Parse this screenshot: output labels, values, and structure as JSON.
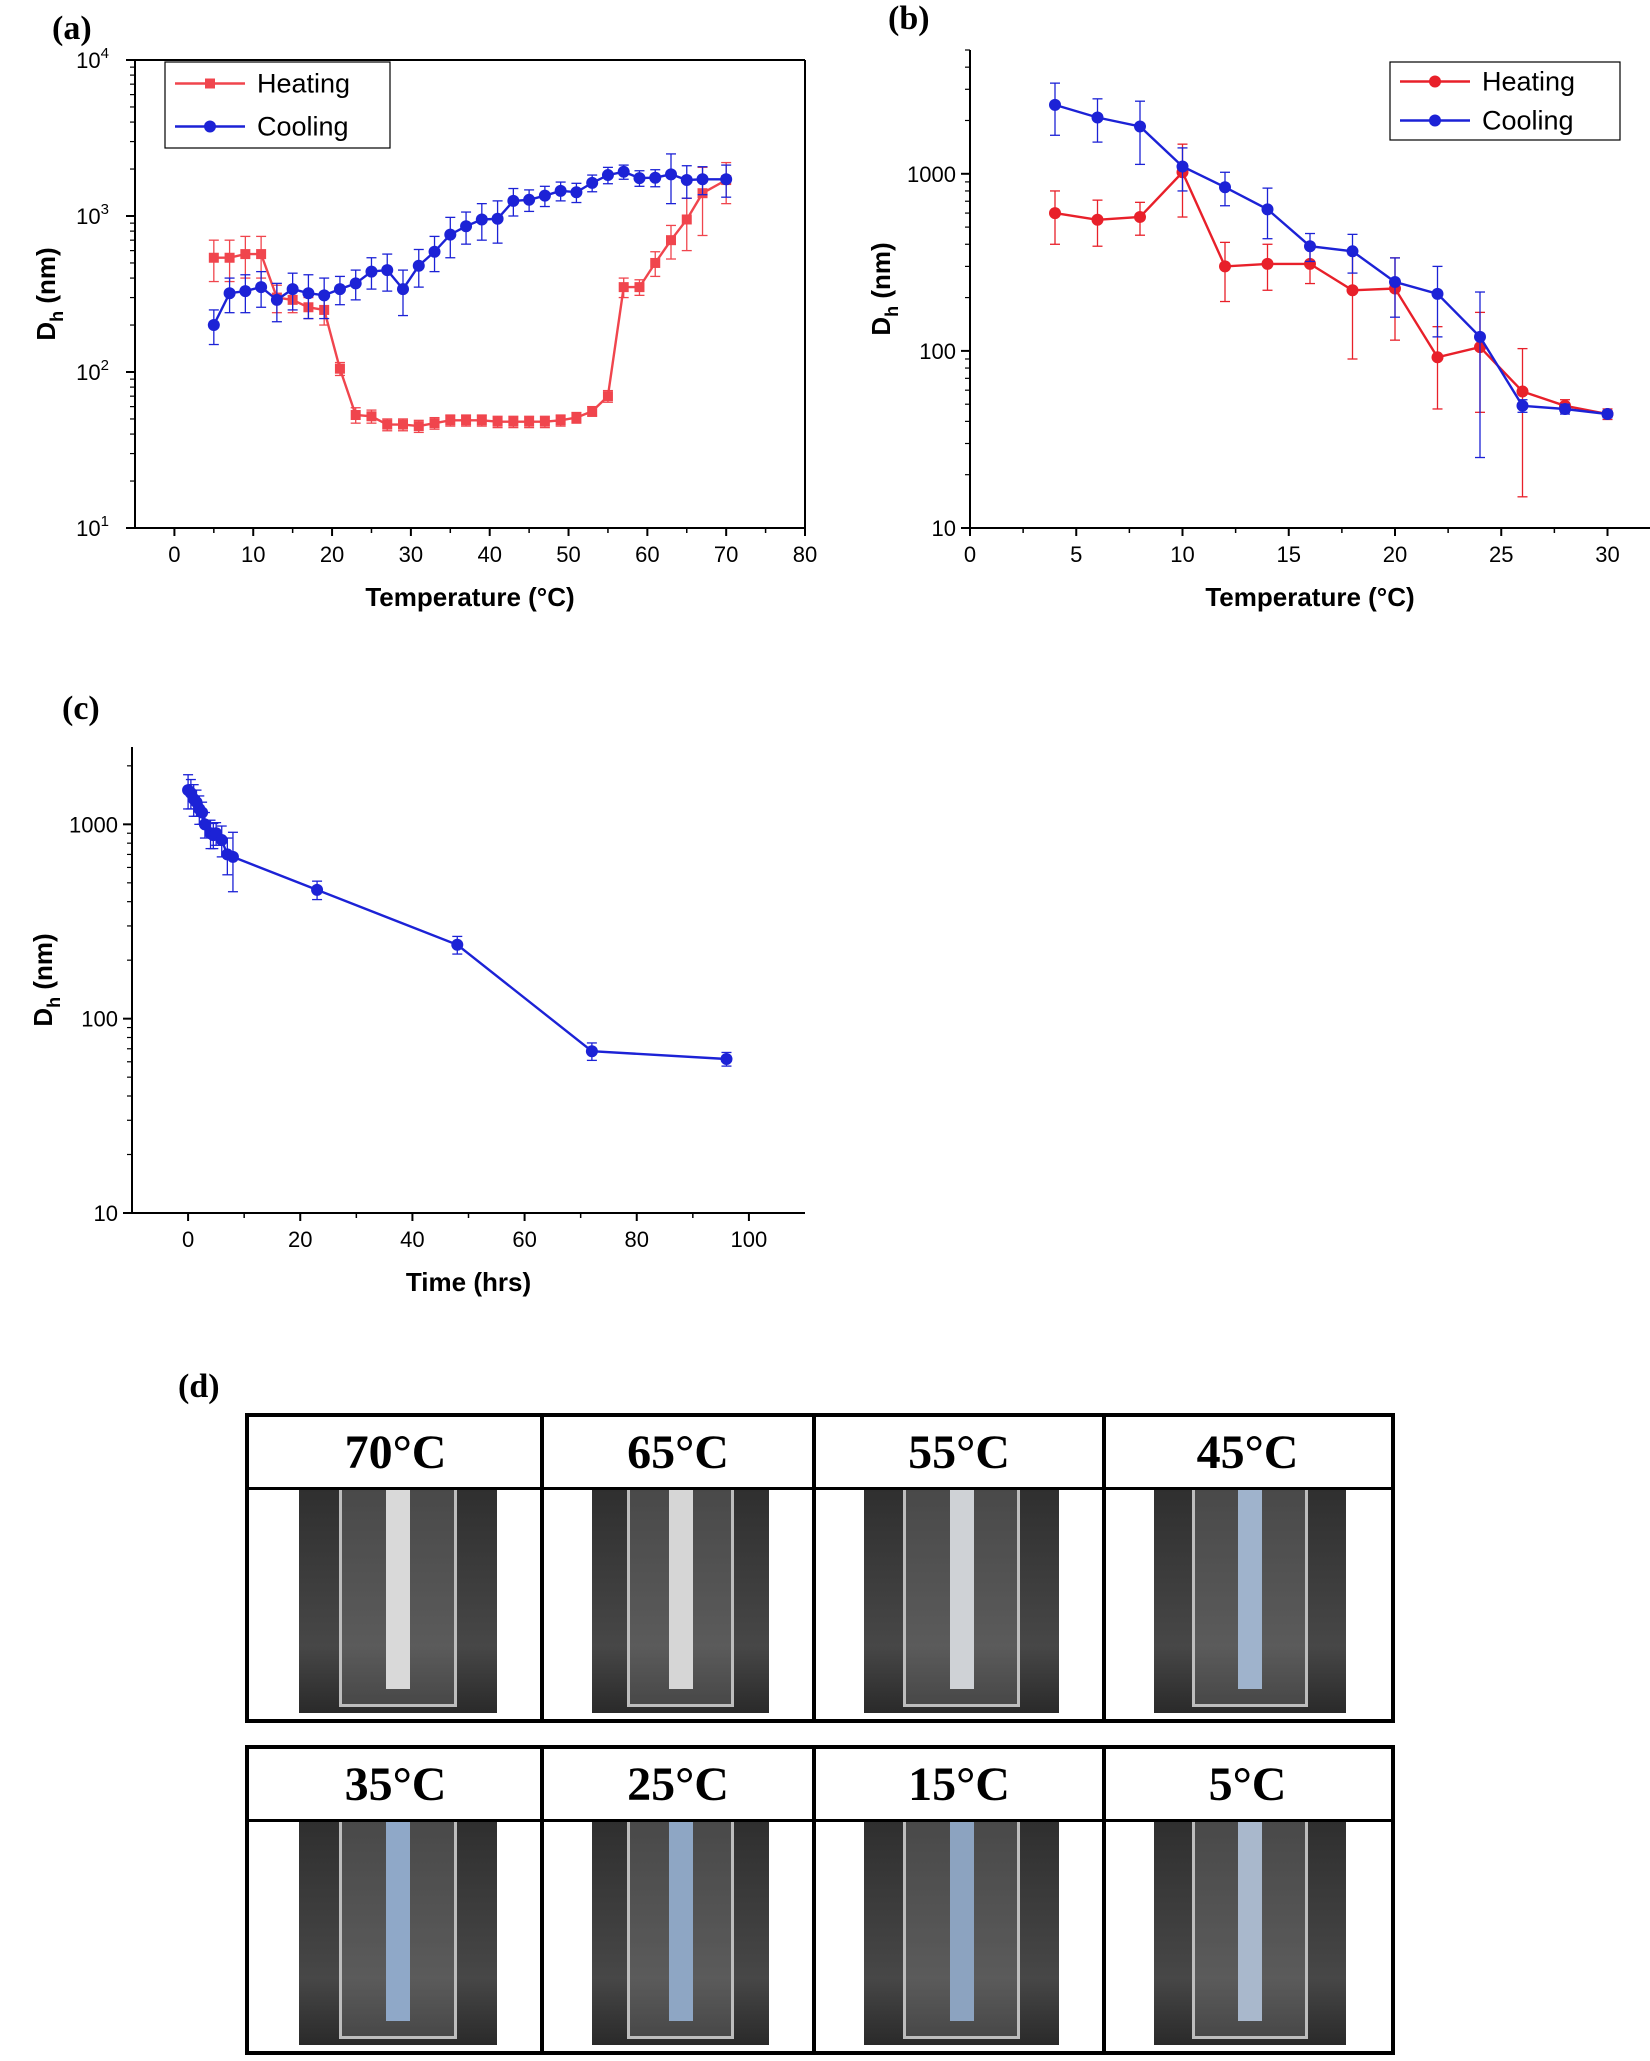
{
  "panels": {
    "a": {
      "label": "(a)"
    },
    "b": {
      "label": "(b)"
    },
    "c": {
      "label": "(c)"
    },
    "d": {
      "label": "(d)"
    }
  },
  "chart_data": [
    {
      "id": "a",
      "type": "line",
      "xlabel": "Temperature (°C)",
      "ylabel": "D_h (nm)",
      "ylabel_main": "D",
      "ylabel_sub": "h",
      "ylabel_rest": " (nm)",
      "xlim": [
        -5,
        80
      ],
      "ylim": [
        10,
        10000
      ],
      "yscale": "log",
      "xticks": [
        0,
        10,
        20,
        30,
        40,
        50,
        60,
        70,
        80
      ],
      "yticks": [
        {
          "v": 10,
          "base": "10",
          "exp": "1"
        },
        {
          "v": 100,
          "base": "10",
          "exp": "2"
        },
        {
          "v": 1000,
          "base": "10",
          "exp": "3"
        },
        {
          "v": 10000,
          "base": "10",
          "exp": "4"
        }
      ],
      "legend": "top-left",
      "series": [
        {
          "name": "Heating",
          "color": "#f0454d",
          "marker": "square",
          "x": [
            5,
            7,
            9,
            11,
            13,
            15,
            17,
            19,
            21,
            23,
            25,
            27,
            29,
            31,
            33,
            35,
            37,
            39,
            41,
            43,
            45,
            47,
            49,
            51,
            53,
            55,
            57,
            59,
            61,
            63,
            65,
            67,
            70
          ],
          "y": [
            540,
            540,
            570,
            570,
            300,
            290,
            260,
            250,
            105,
            53,
            52,
            46,
            46,
            45,
            47,
            49,
            49,
            49,
            48,
            48,
            48,
            48,
            49,
            51,
            56,
            70,
            350,
            350,
            500,
            700,
            950,
            1400,
            1700
          ],
          "err": [
            160,
            160,
            170,
            170,
            60,
            50,
            40,
            50,
            10,
            6,
            5,
            4,
            4,
            4,
            4,
            4,
            4,
            4,
            4,
            4,
            4,
            4,
            4,
            4,
            4,
            6,
            50,
            40,
            90,
            170,
            350,
            650,
            500
          ]
        },
        {
          "name": "Cooling",
          "color": "#1c22d6",
          "marker": "circle",
          "x": [
            5,
            7,
            9,
            11,
            13,
            15,
            17,
            19,
            21,
            23,
            25,
            27,
            29,
            31,
            33,
            35,
            37,
            39,
            41,
            43,
            45,
            47,
            49,
            51,
            53,
            55,
            57,
            59,
            61,
            63,
            65,
            67,
            70
          ],
          "y": [
            200,
            320,
            330,
            350,
            290,
            340,
            320,
            310,
            340,
            370,
            440,
            450,
            340,
            480,
            590,
            760,
            860,
            950,
            960,
            1250,
            1270,
            1350,
            1450,
            1420,
            1630,
            1830,
            1920,
            1750,
            1760,
            1850,
            1700,
            1720,
            1720
          ],
          "err": [
            50,
            80,
            90,
            90,
            80,
            90,
            100,
            90,
            70,
            80,
            100,
            120,
            110,
            130,
            150,
            220,
            200,
            250,
            290,
            250,
            200,
            200,
            200,
            200,
            200,
            220,
            200,
            200,
            220,
            650,
            400,
            350,
            400
          ]
        }
      ]
    },
    {
      "id": "b",
      "type": "line",
      "xlabel": "Temperature (°C)",
      "ylabel": "D_h (nm)",
      "ylabel_main": "D",
      "ylabel_sub": "h",
      "ylabel_rest": " (nm)",
      "xlim": [
        0,
        32
      ],
      "ylim": [
        10,
        5000
      ],
      "yscale": "log",
      "xticks": [
        0,
        5,
        10,
        15,
        20,
        25,
        30
      ],
      "yticks": [
        {
          "v": 10,
          "base": "10",
          "exp": ""
        },
        {
          "v": 100,
          "base": "100",
          "exp": ""
        },
        {
          "v": 1000,
          "base": "1000",
          "exp": ""
        }
      ],
      "legend": "top-right",
      "series": [
        {
          "name": "Heating",
          "color": "#e8202a",
          "marker": "circle",
          "x": [
            4,
            6,
            8,
            10,
            12,
            14,
            16,
            18,
            20,
            22,
            24,
            26,
            28,
            30
          ],
          "y": [
            600,
            550,
            570,
            1020,
            300,
            310,
            310,
            220,
            225,
            92,
            105,
            59,
            49,
            44
          ],
          "err": [
            200,
            160,
            120,
            450,
            110,
            90,
            70,
            130,
            110,
            45,
            60,
            44,
            4,
            3
          ]
        },
        {
          "name": "Cooling",
          "color": "#1c22d6",
          "marker": "circle",
          "x": [
            4,
            6,
            8,
            10,
            12,
            14,
            16,
            18,
            20,
            22,
            24,
            26,
            28,
            30
          ],
          "y": [
            2450,
            2080,
            1850,
            1100,
            840,
            630,
            390,
            365,
            245,
            210,
            120,
            49,
            47,
            44
          ],
          "err": [
            800,
            570,
            720,
            300,
            180,
            200,
            70,
            90,
            90,
            90,
            95,
            4,
            3,
            2
          ]
        }
      ]
    },
    {
      "id": "c",
      "type": "line",
      "xlabel": "Time (hrs)",
      "ylabel": "D_h (nm)",
      "ylabel_main": "D",
      "ylabel_sub": "h",
      "ylabel_rest": " (nm)",
      "xlim": [
        -10,
        110
      ],
      "ylim": [
        10,
        2500
      ],
      "yscale": "log",
      "xticks": [
        0,
        20,
        40,
        60,
        80,
        100
      ],
      "yticks": [
        {
          "v": 10,
          "base": "10",
          "exp": ""
        },
        {
          "v": 100,
          "base": "100",
          "exp": ""
        },
        {
          "v": 1000,
          "base": "1000",
          "exp": ""
        }
      ],
      "legend": "none",
      "series": [
        {
          "name": "",
          "color": "#1c22d6",
          "marker": "circle",
          "x": [
            0,
            0.5,
            1,
            1.5,
            2,
            2.5,
            3,
            4,
            4.5,
            5,
            6,
            7,
            8,
            23,
            48,
            72,
            96
          ],
          "y": [
            1500,
            1450,
            1350,
            1300,
            1200,
            1150,
            1000,
            900,
            880,
            900,
            830,
            700,
            680,
            460,
            240,
            68,
            62
          ],
          "err": [
            300,
            250,
            250,
            200,
            200,
            150,
            150,
            150,
            130,
            120,
            150,
            150,
            230,
            50,
            25,
            7,
            5
          ]
        }
      ]
    }
  ],
  "photos": {
    "rows": [
      {
        "labels": [
          "70°C",
          "65°C",
          "55°C",
          "45°C"
        ]
      },
      {
        "labels": [
          "35°C",
          "25°C",
          "15°C",
          "5°C"
        ]
      }
    ],
    "tints": [
      "#d9d9d9",
      "#d6d6d6",
      "#cfd2d6",
      "#9fb3cc",
      "#8fa8c8",
      "#8ea6c4",
      "#8ca3c0",
      "#a9b8cc"
    ]
  }
}
